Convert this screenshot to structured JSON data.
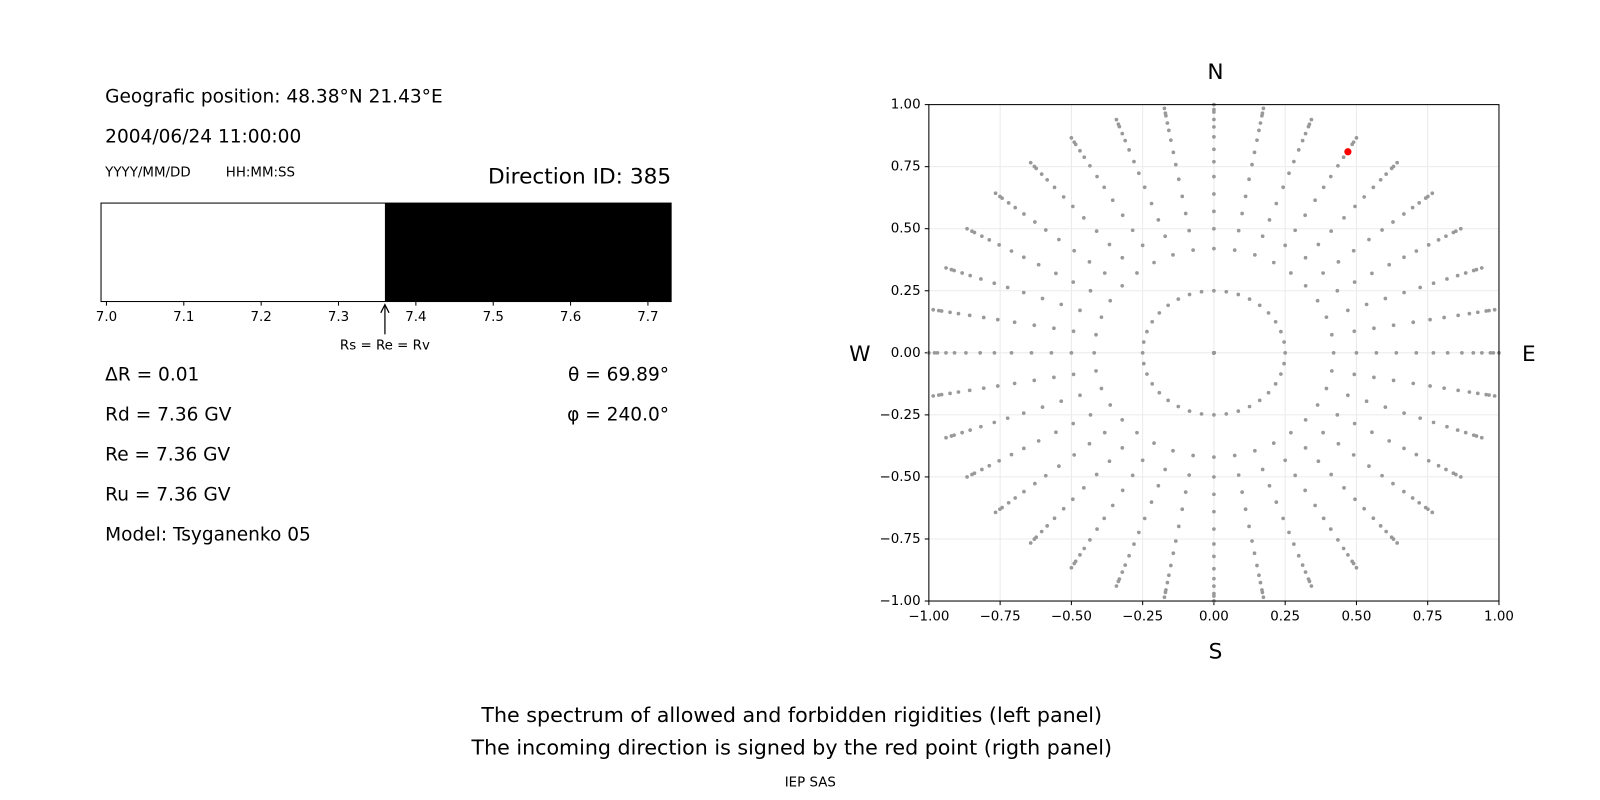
{
  "info": {
    "position": "Geografic position: 48.38°N 21.43°E",
    "datetime": "2004/06/24 11:00:00",
    "date_format": "YYYY/MM/DD",
    "time_format": "HH:MM:SS",
    "direction_id": "Direction ID: 385",
    "delta_r": "ΔR = 0.01",
    "rd": "Rd = 7.36 GV",
    "re": "Re = 7.36 GV",
    "ru": "Ru = 7.36 GV",
    "model": "Model: Tsyganenko 05",
    "theta": "θ = 69.89°",
    "phi": "φ = 240.0°"
  },
  "chart_data": [
    {
      "type": "spectrum",
      "edges": [
        6.993,
        7.36,
        7.73
      ],
      "colors": [
        "#ffffff",
        "#000000"
      ],
      "xlim": [
        6.993,
        7.73
      ],
      "xticks": [
        {
          "value": 7,
          "label": "7.0"
        },
        7.1,
        7.2,
        7.3,
        7.4,
        7.5,
        7.6,
        7.7
      ],
      "annotation": {
        "text": "Rs = Re = Rv",
        "x": 7.36
      }
    },
    {
      "type": "polar-scatter",
      "radii": [
        0,
        0.25,
        0.42,
        0.5,
        0.57,
        0.64,
        0.71,
        0.77,
        0.82,
        0.87,
        0.91,
        0.94,
        0.97,
        0.98,
        1.0
      ],
      "azimuths": [
        0,
        10,
        20,
        30,
        40,
        50,
        60,
        70,
        80,
        90,
        100,
        110,
        120,
        130,
        140,
        150,
        160,
        170,
        180,
        190,
        200,
        210,
        220,
        230,
        240,
        250,
        260,
        270,
        280,
        290,
        300,
        310,
        320,
        330,
        340,
        350
      ],
      "color": "#999999",
      "highlight": {
        "x": 0.47,
        "y": 0.81,
        "color": "#ff0000"
      },
      "xlim": [
        -1,
        1
      ],
      "ylim": [
        -1,
        1
      ],
      "xticks": [
        {
          "value": -1,
          "label": "−1.00"
        },
        {
          "value": -0.75,
          "label": "−0.75"
        },
        {
          "value": -0.5,
          "label": "−0.50"
        },
        {
          "value": -0.25,
          "label": "−0.25"
        },
        {
          "value": 0,
          "label": "0.00"
        },
        {
          "value": 0.25,
          "label": "0.25"
        },
        {
          "value": 0.5,
          "label": "0.50"
        },
        {
          "value": 0.75,
          "label": "0.75"
        },
        {
          "value": 1,
          "label": "1.00"
        }
      ],
      "yticks": [
        {
          "value": -1,
          "label": "−1.00"
        },
        {
          "value": -0.75,
          "label": "−0.75"
        },
        {
          "value": -0.5,
          "label": "−0.50"
        },
        {
          "value": -0.25,
          "label": "−0.25"
        },
        {
          "value": 0,
          "label": "0.00"
        },
        {
          "value": 0.25,
          "label": "0.25"
        },
        {
          "value": 0.5,
          "label": "0.50"
        },
        {
          "value": 0.75,
          "label": "0.75"
        },
        {
          "value": 1,
          "label": "1.00"
        }
      ],
      "grid": true,
      "compass": {
        "north": "N",
        "south": "S",
        "west": "W",
        "east": "E"
      }
    }
  ],
  "footer": {
    "line1": "The spectrum of allowed and forbidden rigidities (left panel)",
    "line2": "The incoming direction is signed by the red point (rigth panel)",
    "credit": "IEP SAS"
  }
}
